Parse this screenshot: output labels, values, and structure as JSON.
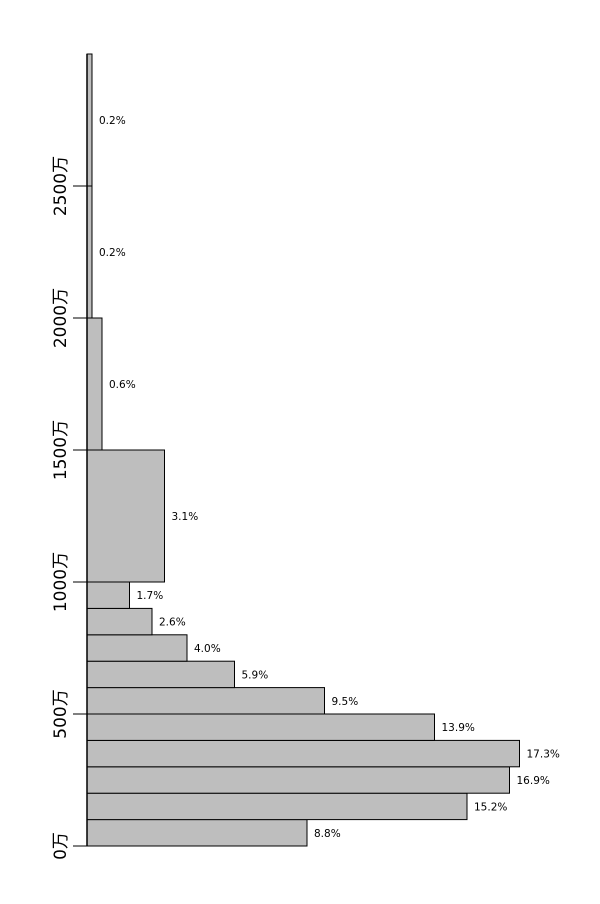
{
  "chart_data": {
    "type": "bar",
    "orientation": "horizontal",
    "bins": [
      {
        "from": 0,
        "to": 100,
        "value": 8.8,
        "label": "8.8%"
      },
      {
        "from": 100,
        "to": 200,
        "value": 15.2,
        "label": "15.2%"
      },
      {
        "from": 200,
        "to": 300,
        "value": 16.9,
        "label": "16.9%"
      },
      {
        "from": 300,
        "to": 400,
        "value": 17.3,
        "label": "17.3%"
      },
      {
        "from": 400,
        "to": 500,
        "value": 13.9,
        "label": "13.9%"
      },
      {
        "from": 500,
        "to": 600,
        "value": 9.5,
        "label": "9.5%"
      },
      {
        "from": 600,
        "to": 700,
        "value": 5.9,
        "label": "5.9%"
      },
      {
        "from": 700,
        "to": 800,
        "value": 4.0,
        "label": "4.0%"
      },
      {
        "from": 800,
        "to": 900,
        "value": 2.6,
        "label": "2.6%"
      },
      {
        "from": 900,
        "to": 1000,
        "value": 1.7,
        "label": "1.7%"
      },
      {
        "from": 1000,
        "to": 1500,
        "value": 3.1,
        "label": "3.1%"
      },
      {
        "from": 1500,
        "to": 2000,
        "value": 0.6,
        "label": "0.6%"
      },
      {
        "from": 2000,
        "to": 2500,
        "value": 0.2,
        "label": "0.2%"
      },
      {
        "from": 2500,
        "to": 3000,
        "value": 0.2,
        "label": "0.2%"
      }
    ],
    "y_ticks": [
      {
        "value": 0,
        "label": "0万"
      },
      {
        "value": 500,
        "label": "500万"
      },
      {
        "value": 1000,
        "label": "1000万"
      },
      {
        "value": 1500,
        "label": "1500万"
      },
      {
        "value": 2000,
        "label": "2000万"
      },
      {
        "value": 2500,
        "label": "2500万"
      }
    ],
    "ylim": [
      0,
      3000
    ],
    "grid": false,
    "legend": "none",
    "bar_color": "#bebebe",
    "edge_color": "#000000",
    "title": "",
    "xlabel": "",
    "ylabel": ""
  }
}
